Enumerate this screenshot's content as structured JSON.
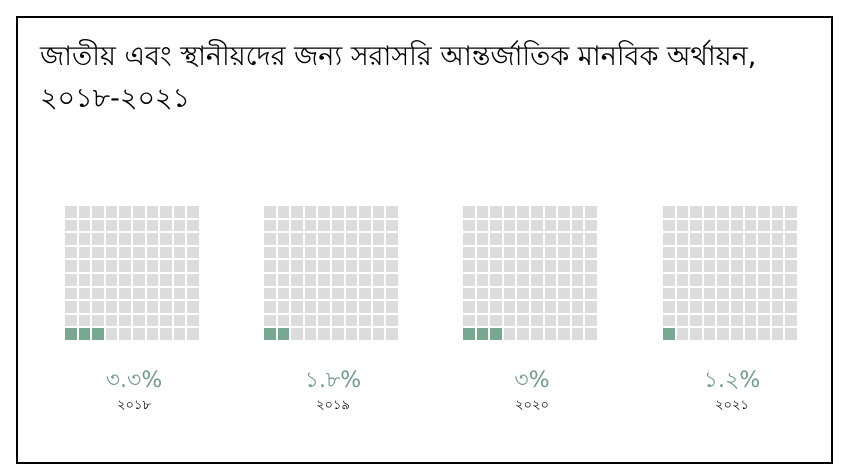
{
  "chart_data": {
    "type": "waffle",
    "title": "জাতীয় এবং স্থানীয়দের জন্য সরাসরি আন্তর্জাতিক মানবিক অর্থায়ন, ২০১৮-২০২১",
    "title_lines": [
      "জাতীয় এবং স্থানীয়দের জন্য সরাসরি আন্তর্জাতিক মানবিক অর্থায়ন,",
      "২০১৮-২০২১"
    ],
    "grid": "10x10",
    "unit": "%",
    "categories": [
      "২০১৮",
      "২০১৯",
      "২০২০",
      "২০২১"
    ],
    "values": [
      3.3,
      1.8,
      3,
      1.2
    ],
    "value_labels": [
      "৩.৩%",
      "১.৮%",
      "৩%",
      "১.২%"
    ],
    "colors": {
      "filled": "#79a892",
      "empty": "#dcdcdc",
      "label": "#6f9a86"
    }
  }
}
